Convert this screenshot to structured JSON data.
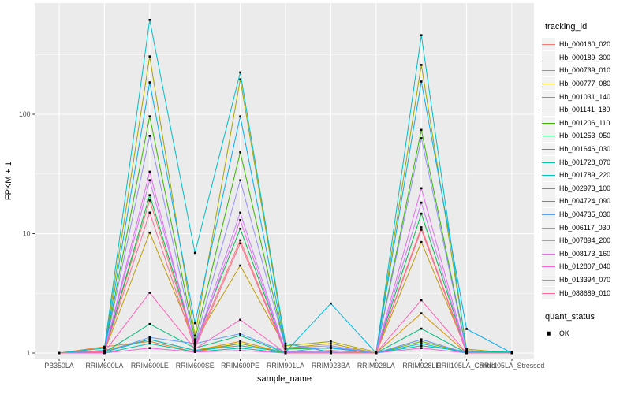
{
  "figure": {
    "background": "#FFFFFF",
    "panel_background": "#EBEBEB",
    "grid_color": "#FFFFFF",
    "tick_label_color": "#4D4D4D",
    "text_color": "#000000",
    "legend_key_background": "#F2F2F2"
  },
  "legend": {
    "tracking_title": "tracking_id",
    "quant_title": "quant_status",
    "quant_items": [
      {
        "label": "OK",
        "symbol": "black-square"
      }
    ]
  },
  "chart_data": {
    "type": "line",
    "title": "",
    "xlabel": "sample_name",
    "ylabel": "FPKM + 1",
    "y_scale": "log10",
    "y_ticks": [
      1,
      10,
      100
    ],
    "y_tick_labels": [
      "1",
      "10",
      "100"
    ],
    "y_minor_ticks": [
      3.162,
      31.62,
      316.2
    ],
    "ylim": [
      0.9,
      860
    ],
    "grid": true,
    "legend_position": "right",
    "point_symbol": "square",
    "point_color": "#000000",
    "categories": [
      "PB350LA",
      "RRIM600LA",
      "RRIM600LE",
      "RRIM600SE",
      "RRIM600PE",
      "RRIM901LA",
      "RRIM928BA",
      "RRIM928LA",
      "RRIM928LE",
      "RRII105LA_Control",
      "RRII105LA_Stressed"
    ],
    "series": [
      {
        "name": "Hb_000160_020",
        "color": "#F8766D",
        "values": [
          1,
          1.02,
          19,
          1.15,
          8.8,
          1.02,
          1.05,
          1,
          11.3,
          1.02,
          1
        ]
      },
      {
        "name": "Hb_000189_300",
        "color": "#EA8331",
        "values": [
          1,
          1.13,
          1.25,
          1.02,
          1.2,
          1,
          1,
          1,
          1.3,
          1,
          1
        ]
      },
      {
        "name": "Hb_000739_010",
        "color": "#D89000",
        "values": [
          1,
          1.05,
          1.3,
          1.05,
          1.25,
          1,
          1,
          1,
          2.15,
          1,
          1
        ]
      },
      {
        "name": "Hb_000777_080",
        "color": "#C09B00",
        "values": [
          1,
          1.03,
          10.2,
          1.25,
          5.4,
          1.1,
          1.2,
          1,
          8.5,
          1.05,
          1
        ]
      },
      {
        "name": "Hb_001031_140",
        "color": "#A3A500",
        "values": [
          1,
          1.1,
          305,
          1.4,
          196,
          1.15,
          1.25,
          1.02,
          259,
          1.08,
          1
        ]
      },
      {
        "name": "Hb_001141_180",
        "color": "#7CAE00",
        "values": [
          1,
          1.02,
          1.3,
          1.05,
          1.2,
          1,
          1,
          1,
          1.25,
          1,
          1
        ]
      },
      {
        "name": "Hb_001206_110",
        "color": "#39B600",
        "values": [
          1,
          1.05,
          96,
          1.3,
          48,
          1.08,
          1.1,
          1,
          74,
          1.04,
          1
        ]
      },
      {
        "name": "Hb_001253_050",
        "color": "#00BB4E",
        "values": [
          1,
          1.02,
          21,
          1.2,
          11,
          1.02,
          1.02,
          1,
          14.7,
          1.02,
          1
        ]
      },
      {
        "name": "Hb_001646_030",
        "color": "#00BF7D",
        "values": [
          1,
          1.01,
          1.75,
          1.1,
          1.4,
          1,
          1,
          1,
          1.6,
          1,
          1
        ]
      },
      {
        "name": "Hb_001728_070",
        "color": "#00C1A3",
        "values": [
          1,
          1,
          1.2,
          1.02,
          1.1,
          1,
          1,
          1,
          1.15,
          1.03,
          1.02
        ]
      },
      {
        "name": "Hb_001789_220",
        "color": "#00BFC4",
        "values": [
          1,
          1.1,
          617,
          6.9,
          224,
          1.2,
          1.02,
          1,
          459,
          1.02,
          1
        ]
      },
      {
        "name": "Hb_002973_100",
        "color": "#00BAE0",
        "values": [
          1,
          1.02,
          1.3,
          1.05,
          1.15,
          1.02,
          2.6,
          1,
          1.2,
          1,
          1
        ]
      },
      {
        "name": "Hb_004724_090",
        "color": "#00B0F6",
        "values": [
          1,
          1.05,
          185,
          1.78,
          96,
          1.1,
          1.1,
          1,
          188,
          1.59,
          1
        ]
      },
      {
        "name": "Hb_004735_030",
        "color": "#619CFF",
        "values": [
          1,
          1.02,
          1.35,
          1.2,
          1.45,
          1.02,
          1.12,
          1,
          1.3,
          1,
          1
        ]
      },
      {
        "name": "Hb_006117_030",
        "color": "#9590FF",
        "values": [
          1,
          1.03,
          66,
          1.2,
          28,
          1.1,
          1.15,
          1,
          63,
          1.02,
          1
        ]
      },
      {
        "name": "Hb_007894_200",
        "color": "#C77CFF",
        "values": [
          1,
          1.02,
          28,
          1.15,
          15,
          1.02,
          1.02,
          1,
          18.2,
          1,
          1
        ]
      },
      {
        "name": "Hb_008173_160",
        "color": "#E76BF3",
        "values": [
          1,
          1.02,
          33,
          1.1,
          13,
          1,
          1,
          1,
          24,
          1,
          1
        ]
      },
      {
        "name": "Hb_012807_040",
        "color": "#FA62DB",
        "values": [
          1,
          1,
          1.1,
          1.02,
          1.05,
          1,
          1,
          1,
          1.1,
          1,
          1
        ]
      },
      {
        "name": "Hb_013394_070",
        "color": "#FF62BC",
        "values": [
          1,
          1.02,
          3.2,
          1.08,
          1.9,
          1,
          1,
          1,
          2.77,
          1,
          1
        ]
      },
      {
        "name": "Hb_088689_010",
        "color": "#FF6A98",
        "values": [
          1,
          1.03,
          15,
          1.1,
          8.3,
          1,
          1,
          1,
          10.8,
          1,
          1
        ]
      }
    ]
  }
}
